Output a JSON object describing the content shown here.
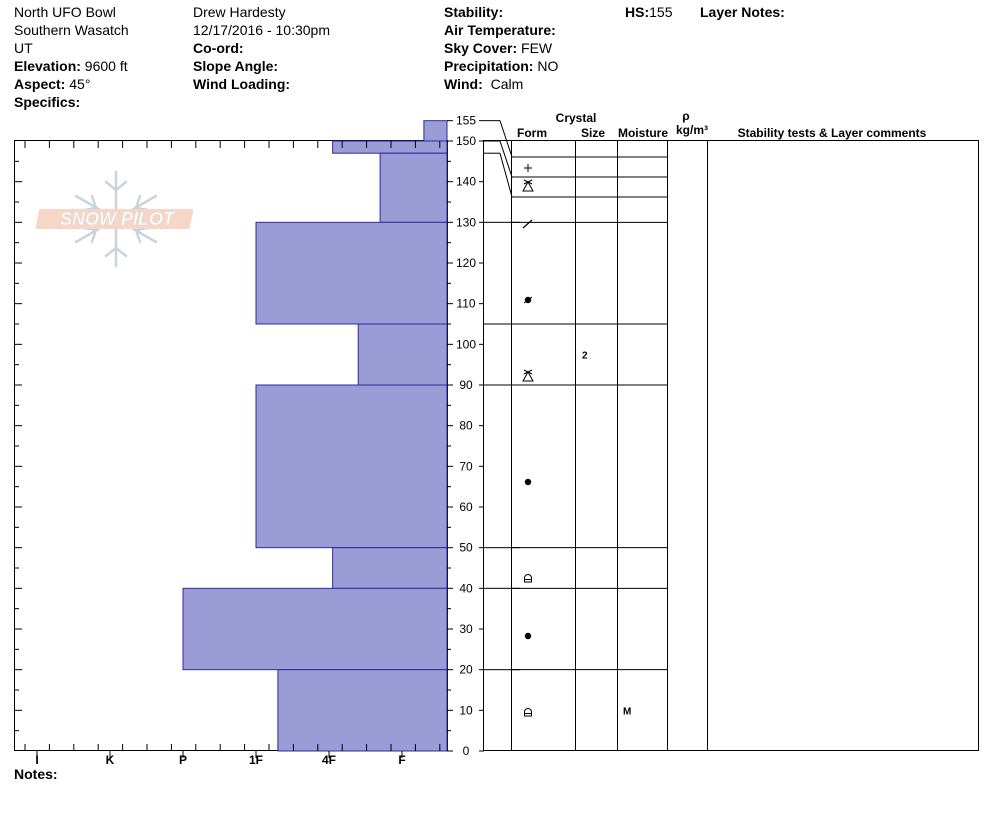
{
  "header": {
    "location": "North UFO Bowl",
    "range": "Southern Wasatch",
    "state": "UT",
    "elevation_label": "Elevation:",
    "elevation_value": "9600 ft",
    "aspect_label": "Aspect:",
    "aspect_value": "45°",
    "specifics_label": "Specifics:",
    "observer": "Drew Hardesty",
    "datetime": "12/17/2016 - 10:30pm",
    "coord_label": "Co-ord:",
    "slope_label": "Slope Angle:",
    "wind_loading_label": "Wind Loading:",
    "stability_label": "Stability:",
    "air_temp_label": "Air Temperature:",
    "sky_label": "Sky Cover:",
    "sky_value": "FEW",
    "precip_label": "Precipitation:",
    "precip_value": "NO",
    "wind_label": "Wind:",
    "wind_value": "Calm",
    "hs_label": "HS:",
    "hs_value": "155",
    "layer_notes_label": "Layer Notes:"
  },
  "logo_text": "SNOW PILOT",
  "notes_label": "Notes:",
  "columns": {
    "crystal": "Crystal",
    "form": "Form",
    "size": "Size",
    "moisture": "Moisture",
    "rho": "ρ",
    "density_unit": "kg/m³",
    "stability": "Stability tests & Layer comments"
  },
  "colors": {
    "layer_fill": "#9b9bd6",
    "layer_stroke": "#2b2b9e"
  },
  "chart_data": {
    "type": "bar",
    "orientation": "horizontal",
    "y_unit": "cm",
    "ylim": [
      0,
      155
    ],
    "y_ticks": [
      0,
      10,
      20,
      30,
      40,
      50,
      60,
      70,
      80,
      90,
      100,
      110,
      120,
      130,
      140,
      150,
      155
    ],
    "hardness_scale": [
      "I",
      "K",
      "P",
      "1F",
      "4F",
      "F"
    ],
    "hardness_axis_note": "hand hardness, plotted with hardest at left and softest (F) at right",
    "layers": [
      {
        "top": 155,
        "bottom": 150,
        "hardness": "F+",
        "hardness_index": 5.3,
        "form": "+",
        "size": "",
        "moisture": ""
      },
      {
        "top": 150,
        "bottom": 147,
        "hardness": "4F-",
        "hardness_index": 4.05,
        "form": "",
        "size": "",
        "moisture": ""
      },
      {
        "top": 147,
        "bottom": 130,
        "hardness": "F-",
        "hardness_index": 4.7,
        "form": "",
        "size": "",
        "moisture": ""
      },
      {
        "top": 130,
        "bottom": 105,
        "hardness": "1F",
        "hardness_index": 3.0,
        "form": "",
        "size": "",
        "moisture": ""
      },
      {
        "top": 105,
        "bottom": 90,
        "hardness": "4F+",
        "hardness_index": 4.4,
        "form": "",
        "size": "2",
        "moisture": ""
      },
      {
        "top": 90,
        "bottom": 50,
        "hardness": "1F",
        "hardness_index": 3.0,
        "form": "",
        "size": "",
        "moisture": ""
      },
      {
        "top": 50,
        "bottom": 40,
        "hardness": "4F-",
        "hardness_index": 4.05,
        "form": "",
        "size": "",
        "moisture": ""
      },
      {
        "top": 40,
        "bottom": 20,
        "hardness": "P-",
        "hardness_index": 2.0,
        "form": "",
        "size": "",
        "moisture": ""
      },
      {
        "top": 20,
        "bottom": 0,
        "hardness": "1F+",
        "hardness_index": 3.3,
        "form": "",
        "size": "",
        "moisture": "M"
      }
    ],
    "form_symbols": [
      {
        "depth": 153,
        "symbol": "plus"
      },
      {
        "depth": 148,
        "symbol": "surface-hoar"
      },
      {
        "depth": 138,
        "symbol": "slash"
      },
      {
        "depth": 117,
        "symbol": "rounding-decomposed"
      },
      {
        "depth": 97,
        "symbol": "surface-hoar"
      },
      {
        "depth": 70,
        "symbol": "round-dot"
      },
      {
        "depth": 45,
        "symbol": "faceted"
      },
      {
        "depth": 30,
        "symbol": "round-dot"
      },
      {
        "depth": 10,
        "symbol": "faceted"
      }
    ]
  }
}
